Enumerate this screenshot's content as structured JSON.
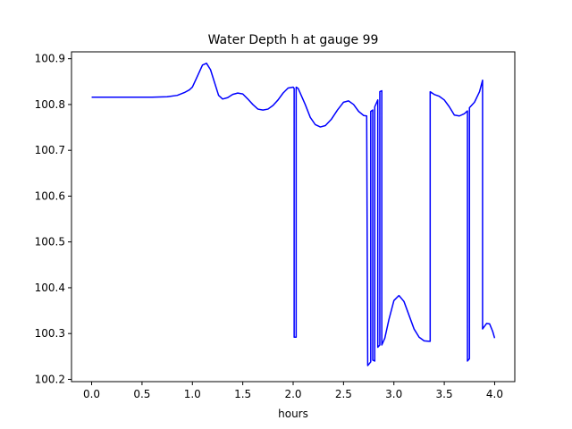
{
  "chart_data": {
    "type": "line",
    "title": "Water Depth h at gauge 99",
    "xlabel": "hours",
    "ylabel": "",
    "xlim": [
      -0.2,
      4.2
    ],
    "ylim": [
      100.195,
      100.915
    ],
    "xticks": [
      0.0,
      0.5,
      1.0,
      1.5,
      2.0,
      2.5,
      3.0,
      3.5,
      4.0
    ],
    "xtick_labels": [
      "0.0",
      "0.5",
      "1.0",
      "1.5",
      "2.0",
      "2.5",
      "3.0",
      "3.5",
      "4.0"
    ],
    "yticks": [
      100.2,
      100.3,
      100.4,
      100.5,
      100.6,
      100.7,
      100.8,
      100.9
    ],
    "ytick_labels": [
      "100.2",
      "100.3",
      "100.4",
      "100.5",
      "100.6",
      "100.7",
      "100.8",
      "100.9"
    ],
    "grid": false,
    "series": [
      {
        "color": "#0000ff",
        "x": [
          0.0,
          0.2,
          0.4,
          0.6,
          0.75,
          0.85,
          0.92,
          0.97,
          1.0,
          1.05,
          1.1,
          1.14,
          1.18,
          1.22,
          1.26,
          1.3,
          1.35,
          1.4,
          1.45,
          1.5,
          1.55,
          1.6,
          1.65,
          1.7,
          1.75,
          1.8,
          1.85,
          1.9,
          1.95,
          2.0,
          2.01,
          2.01,
          2.03,
          2.03,
          2.05,
          2.08,
          2.12,
          2.17,
          2.22,
          2.27,
          2.32,
          2.38,
          2.44,
          2.5,
          2.55,
          2.6,
          2.65,
          2.7,
          2.73,
          2.74,
          2.74,
          2.77,
          2.77,
          2.79,
          2.79,
          2.81,
          2.81,
          2.84,
          2.84,
          2.86,
          2.86,
          2.88,
          2.88,
          2.91,
          2.95,
          3.0,
          3.05,
          3.1,
          3.15,
          3.2,
          3.25,
          3.3,
          3.35,
          3.36,
          3.36,
          3.4,
          3.45,
          3.5,
          3.55,
          3.6,
          3.65,
          3.7,
          3.73,
          3.73,
          3.75,
          3.75,
          3.8,
          3.85,
          3.88,
          3.88,
          3.92,
          3.95,
          3.98,
          4.0
        ],
        "y": [
          100.816,
          100.816,
          100.816,
          100.816,
          100.817,
          100.82,
          100.826,
          100.832,
          100.838,
          100.862,
          100.886,
          100.89,
          100.876,
          100.848,
          100.82,
          100.812,
          100.815,
          100.822,
          100.825,
          100.823,
          100.812,
          100.8,
          100.79,
          100.788,
          100.79,
          100.798,
          100.81,
          100.825,
          100.836,
          100.838,
          100.835,
          100.292,
          100.292,
          100.838,
          100.835,
          100.82,
          100.8,
          100.772,
          100.756,
          100.751,
          100.754,
          100.768,
          100.788,
          100.805,
          100.808,
          100.8,
          100.785,
          100.776,
          100.775,
          100.23,
          100.23,
          100.238,
          100.785,
          100.788,
          100.242,
          100.24,
          100.795,
          100.81,
          100.27,
          100.275,
          100.828,
          100.83,
          100.275,
          100.29,
          100.33,
          100.372,
          100.383,
          100.37,
          100.34,
          100.31,
          100.292,
          100.284,
          100.283,
          100.283,
          100.828,
          100.822,
          100.818,
          100.81,
          100.795,
          100.777,
          100.775,
          100.78,
          100.786,
          100.24,
          100.245,
          100.793,
          100.805,
          100.828,
          100.853,
          100.31,
          100.322,
          100.321,
          100.305,
          100.29
        ]
      }
    ]
  }
}
